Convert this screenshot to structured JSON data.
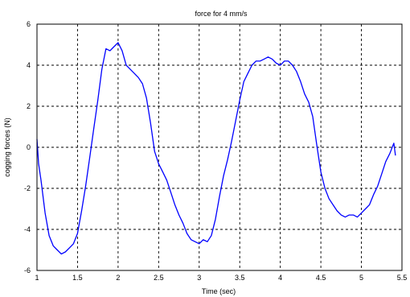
{
  "chart_data": {
    "type": "line",
    "title": "force for 4 mm/s",
    "xlabel": "Time (sec)",
    "ylabel": "cogging forces (N)",
    "xlim": [
      1,
      5.5
    ],
    "ylim": [
      -6,
      6
    ],
    "xticks": [
      1,
      1.5,
      2,
      2.5,
      3,
      3.5,
      4,
      4.5,
      5,
      5.5
    ],
    "yticks": [
      -6,
      -4,
      -2,
      0,
      2,
      4,
      6
    ],
    "grid": true,
    "grid_style": "dashed",
    "series": [
      {
        "color": "#0000ff",
        "x": [
          1.0,
          1.02,
          1.05,
          1.1,
          1.15,
          1.2,
          1.25,
          1.3,
          1.35,
          1.4,
          1.45,
          1.5,
          1.55,
          1.6,
          1.65,
          1.7,
          1.75,
          1.8,
          1.85,
          1.9,
          1.95,
          2.0,
          2.05,
          2.1,
          2.15,
          2.2,
          2.25,
          2.3,
          2.35,
          2.4,
          2.45,
          2.5,
          2.55,
          2.6,
          2.65,
          2.7,
          2.75,
          2.8,
          2.85,
          2.9,
          2.95,
          3.0,
          3.05,
          3.1,
          3.15,
          3.2,
          3.25,
          3.3,
          3.35,
          3.4,
          3.45,
          3.5,
          3.55,
          3.6,
          3.65,
          3.7,
          3.75,
          3.8,
          3.85,
          3.9,
          3.95,
          4.0,
          4.05,
          4.1,
          4.15,
          4.2,
          4.25,
          4.3,
          4.35,
          4.4,
          4.45,
          4.5,
          4.55,
          4.6,
          4.65,
          4.7,
          4.75,
          4.8,
          4.85,
          4.9,
          4.95,
          5.0,
          5.05,
          5.1,
          5.15,
          5.2,
          5.25,
          5.3,
          5.35,
          5.4,
          5.42
        ],
        "y": [
          0.4,
          -0.8,
          -1.6,
          -3.2,
          -4.3,
          -4.8,
          -5.0,
          -5.2,
          -5.1,
          -4.9,
          -4.7,
          -4.2,
          -3.1,
          -1.9,
          -0.5,
          0.9,
          2.3,
          3.8,
          4.8,
          4.7,
          4.9,
          5.1,
          4.7,
          4.0,
          3.8,
          3.6,
          3.4,
          3.1,
          2.4,
          1.2,
          -0.2,
          -0.8,
          -1.2,
          -1.6,
          -2.2,
          -2.8,
          -3.3,
          -3.7,
          -4.2,
          -4.5,
          -4.6,
          -4.7,
          -4.5,
          -4.6,
          -4.3,
          -3.5,
          -2.4,
          -1.4,
          -0.6,
          0.3,
          1.3,
          2.3,
          3.2,
          3.6,
          4.0,
          4.2,
          4.2,
          4.3,
          4.4,
          4.3,
          4.1,
          4.0,
          4.2,
          4.2,
          4.0,
          3.7,
          3.2,
          2.6,
          2.2,
          1.5,
          0.1,
          -1.2,
          -2.0,
          -2.5,
          -2.8,
          -3.1,
          -3.3,
          -3.4,
          -3.3,
          -3.3,
          -3.4,
          -3.2,
          -3.0,
          -2.8,
          -2.3,
          -1.9,
          -1.3,
          -0.7,
          -0.3,
          0.2,
          -0.4
        ]
      }
    ]
  }
}
